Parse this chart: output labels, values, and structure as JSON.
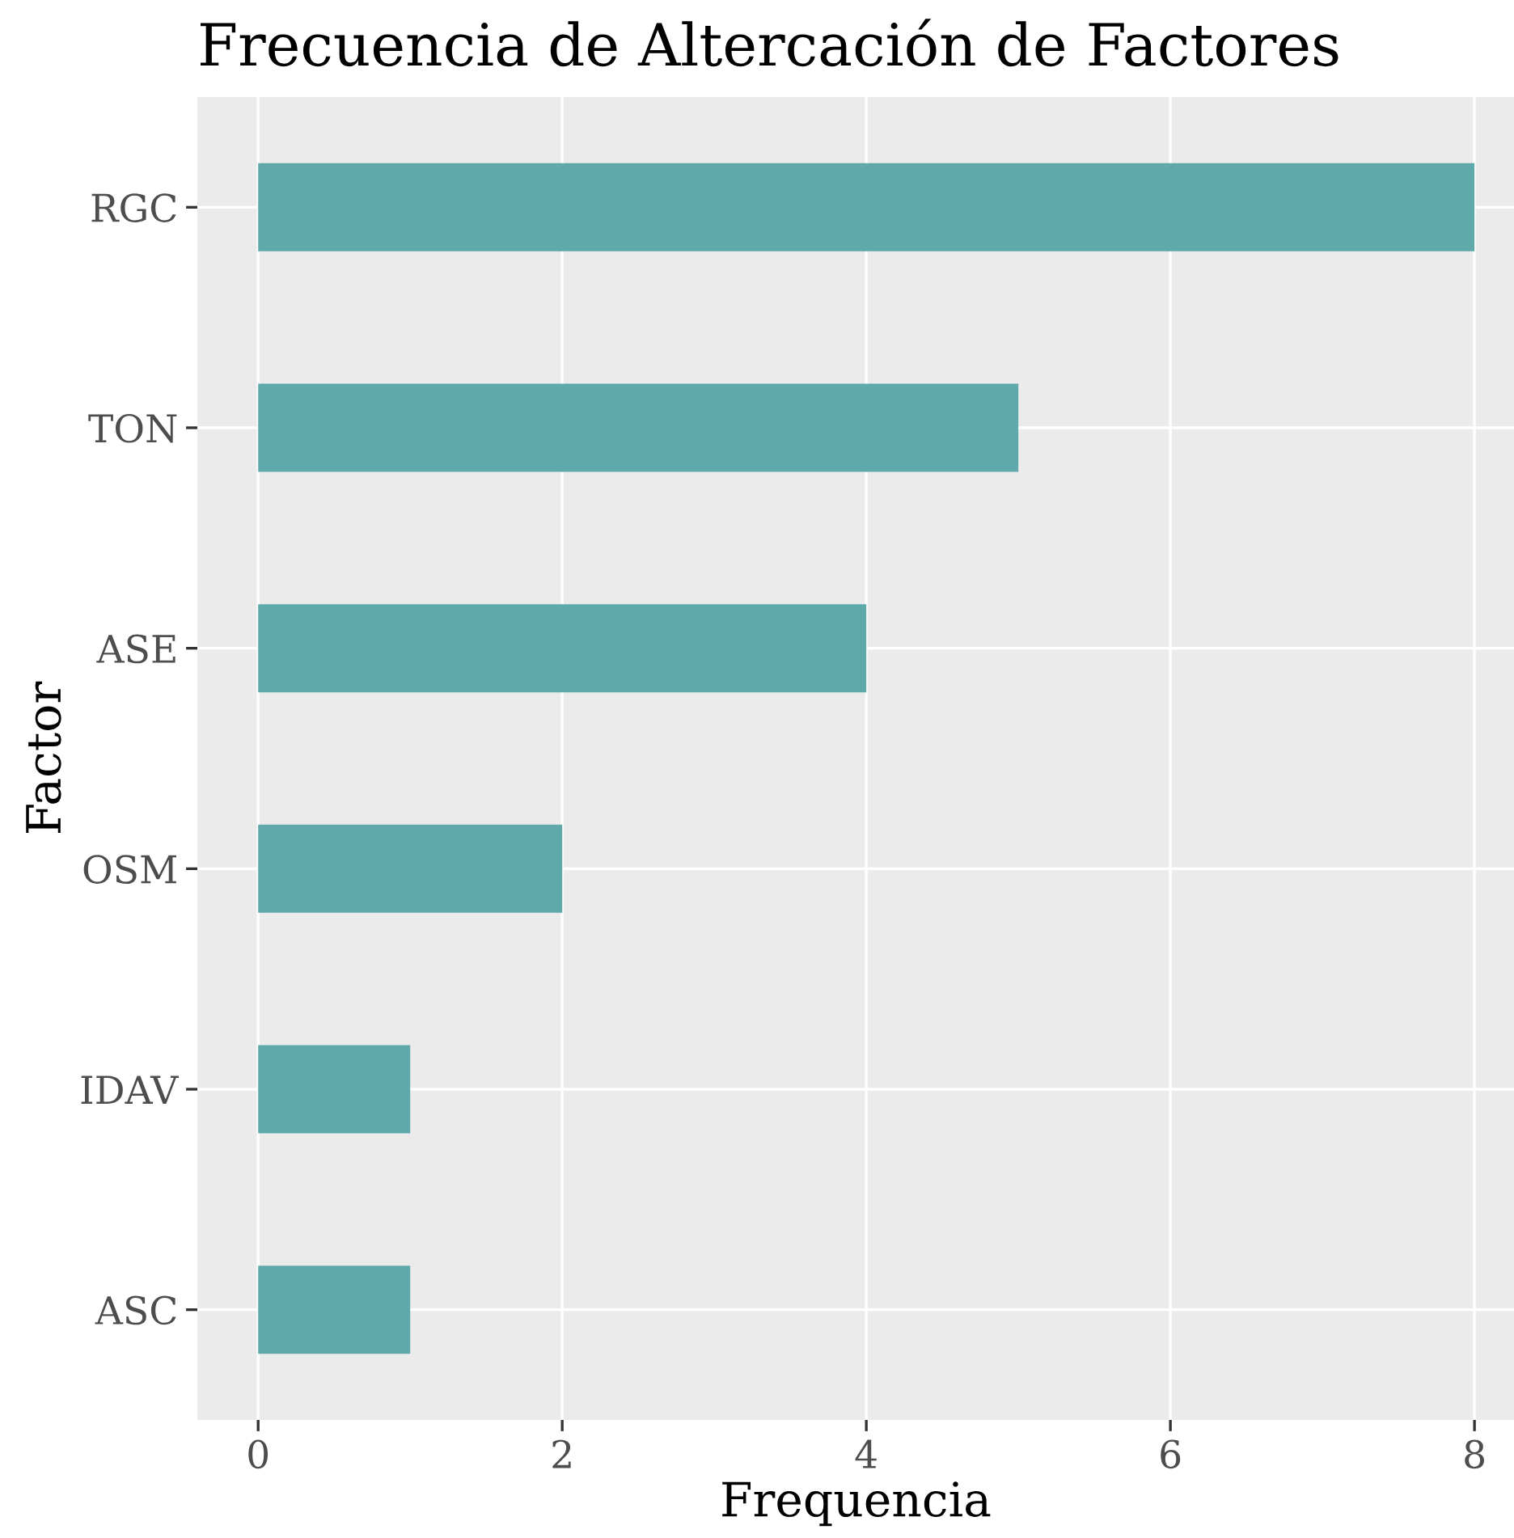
{
  "chart_data": {
    "type": "bar",
    "orientation": "horizontal",
    "title": "Frecuencia de Altercación de Factores",
    "xlabel": "Frequencia",
    "ylabel": "Factor",
    "categories": [
      "RGC",
      "TON",
      "ASE",
      "OSM",
      "IDAV",
      "ASC"
    ],
    "values": [
      8,
      5,
      4,
      2,
      1,
      1
    ],
    "color": "#5fa9ab",
    "xlim": [
      -0.4,
      8.26
    ],
    "xticks": [
      0,
      2,
      4,
      6,
      8
    ],
    "grid": true,
    "legend": false
  }
}
